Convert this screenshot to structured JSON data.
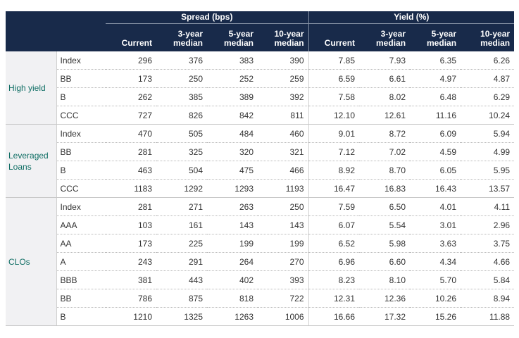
{
  "header": {
    "spread_group": "Spread (bps)",
    "yield_group": "Yield (%)",
    "columns": [
      "Current",
      "3-year\nmedian",
      "5-year\nmedian",
      "10-year\nmedian",
      "Current",
      "3-year\nmedian",
      "5-year\nmedian",
      "10-year\nmedian"
    ]
  },
  "groups": [
    {
      "label": "High yield",
      "rows": [
        {
          "name": "Index",
          "values": [
            "296",
            "376",
            "383",
            "390",
            "7.85",
            "7.93",
            "6.35",
            "6.26"
          ]
        },
        {
          "name": "BB",
          "values": [
            "173",
            "250",
            "252",
            "259",
            "6.59",
            "6.61",
            "4.97",
            "4.87"
          ]
        },
        {
          "name": "B",
          "values": [
            "262",
            "385",
            "389",
            "392",
            "7.58",
            "8.02",
            "6.48",
            "6.29"
          ]
        },
        {
          "name": "CCC",
          "values": [
            "727",
            "826",
            "842",
            "811",
            "12.10",
            "12.61",
            "11.16",
            "10.24"
          ]
        }
      ]
    },
    {
      "label": "Leveraged\nLoans",
      "rows": [
        {
          "name": "Index",
          "values": [
            "470",
            "505",
            "484",
            "460",
            "9.01",
            "8.72",
            "6.09",
            "5.94"
          ]
        },
        {
          "name": "BB",
          "values": [
            "281",
            "325",
            "320",
            "321",
            "7.12",
            "7.02",
            "4.59",
            "4.99"
          ]
        },
        {
          "name": "B",
          "values": [
            "463",
            "504",
            "475",
            "466",
            "8.92",
            "8.70",
            "6.05",
            "5.95"
          ]
        },
        {
          "name": "CCC",
          "values": [
            "1183",
            "1292",
            "1293",
            "1193",
            "16.47",
            "16.83",
            "16.43",
            "13.57"
          ]
        }
      ]
    },
    {
      "label": "CLOs",
      "rows": [
        {
          "name": "Index",
          "values": [
            "281",
            "271",
            "263",
            "250",
            "7.59",
            "6.50",
            "4.01",
            "4.11"
          ]
        },
        {
          "name": "AAA",
          "values": [
            "103",
            "161",
            "143",
            "143",
            "6.07",
            "5.54",
            "3.01",
            "2.96"
          ]
        },
        {
          "name": "AA",
          "values": [
            "173",
            "225",
            "199",
            "199",
            "6.52",
            "5.98",
            "3.63",
            "3.75"
          ]
        },
        {
          "name": "A",
          "values": [
            "243",
            "291",
            "264",
            "270",
            "6.96",
            "6.60",
            "4.34",
            "4.66"
          ]
        },
        {
          "name": "BBB",
          "values": [
            "381",
            "443",
            "402",
            "393",
            "8.23",
            "8.10",
            "5.70",
            "5.84"
          ]
        },
        {
          "name": "BB",
          "values": [
            "786",
            "875",
            "818",
            "722",
            "12.31",
            "12.36",
            "10.26",
            "8.94"
          ]
        },
        {
          "name": "B",
          "values": [
            "1210",
            "1325",
            "1263",
            "1006",
            "16.66",
            "17.32",
            "15.26",
            "11.88"
          ]
        }
      ]
    }
  ],
  "colors": {
    "header_bg": "#182a4a",
    "group_label": "#0f6e64",
    "group_bg": "#f1f1f3"
  }
}
